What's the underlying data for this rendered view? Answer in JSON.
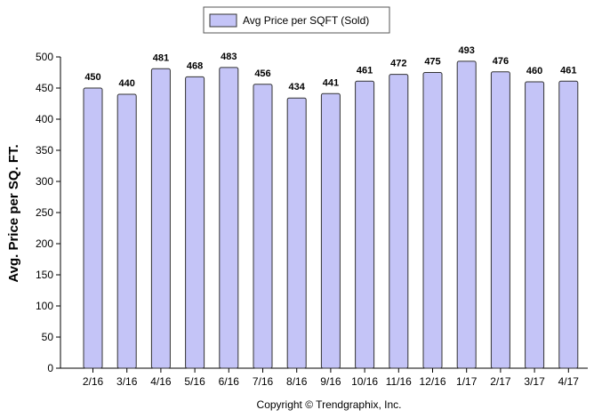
{
  "chart_data": {
    "type": "bar",
    "categories": [
      "2/16",
      "3/16",
      "4/16",
      "5/16",
      "6/16",
      "7/16",
      "8/16",
      "9/16",
      "10/16",
      "11/16",
      "12/16",
      "1/17",
      "2/17",
      "3/17",
      "4/17"
    ],
    "series": [
      {
        "name": "Avg Price per SQFT (Sold)",
        "values": [
          450,
          440,
          481,
          468,
          483,
          456,
          434,
          441,
          461,
          472,
          475,
          493,
          476,
          460,
          461
        ],
        "color": "#c4c4f7"
      }
    ],
    "ylabel": "Avg. Price per SQ. FT.",
    "xlabel": "",
    "ylim": [
      0,
      500
    ],
    "yticks": [
      0,
      50,
      100,
      150,
      200,
      250,
      300,
      350,
      400,
      450,
      500
    ],
    "legend_position": "top-center",
    "grid": false
  },
  "footer": "Copyright © Trendgraphix, Inc.",
  "colors": {
    "bar_fill": "#c4c4f7",
    "bar_stroke": "#333333",
    "axis": "#000000"
  }
}
